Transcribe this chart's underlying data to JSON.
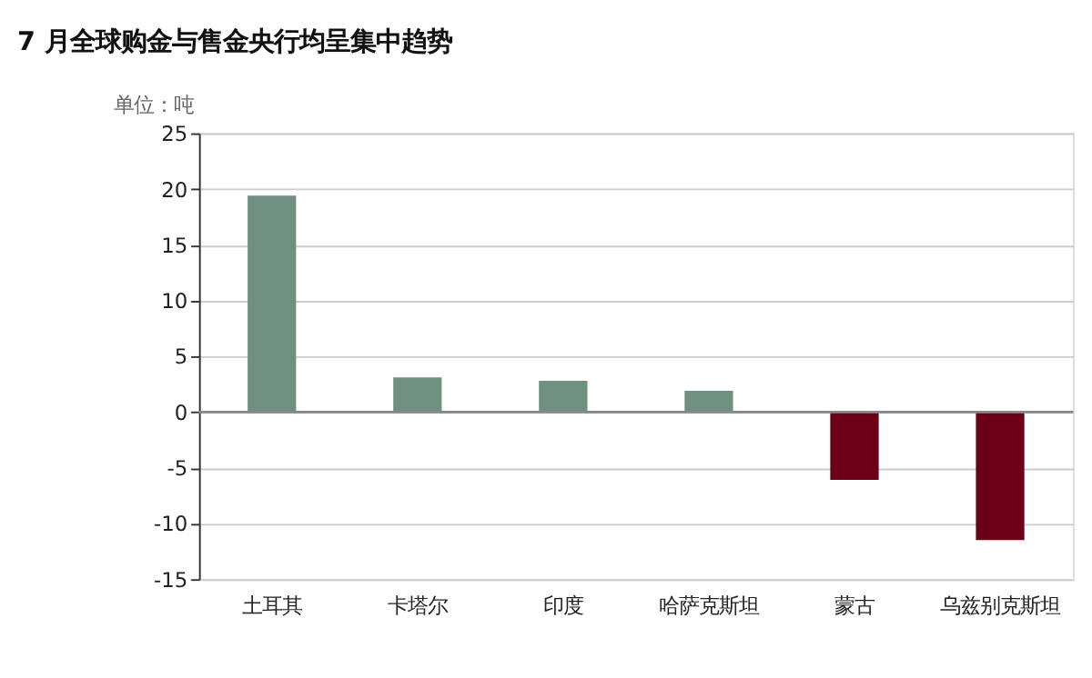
{
  "chart_data": {
    "type": "bar",
    "title": "7 月全球购金与售金央行均呈集中趋势",
    "ylabel": "单位：吨",
    "categories": [
      "土耳其",
      "卡塔尔",
      "印度",
      "哈萨克斯坦",
      "蒙古",
      "乌兹别克斯坦"
    ],
    "values": [
      19.4,
      3.1,
      2.8,
      1.9,
      -6.1,
      -11.5
    ],
    "colors": [
      "#6f8f7f",
      "#6f8f7f",
      "#6f8f7f",
      "#6f8f7f",
      "#6b0018",
      "#6b0018"
    ],
    "ylim": [
      -15,
      25
    ],
    "yticks": [
      -15,
      -10,
      -5,
      0,
      5,
      10,
      15,
      20,
      25
    ],
    "grid": "y"
  }
}
